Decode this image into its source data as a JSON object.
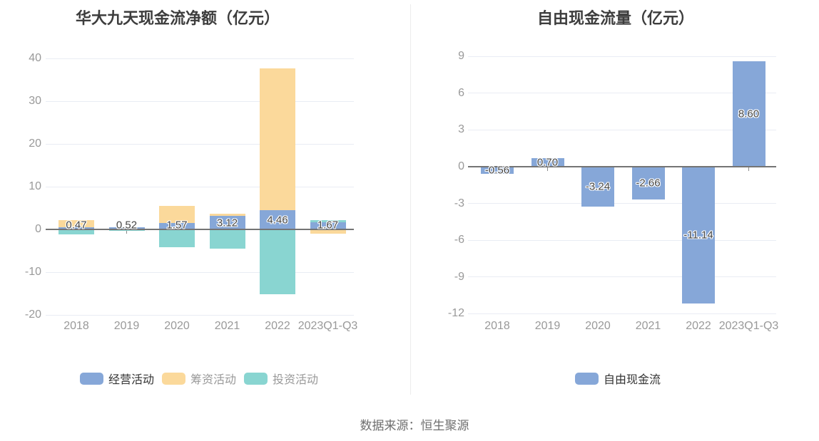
{
  "page": {
    "source_note": "数据来源：恒生聚源"
  },
  "colors": {
    "operating_blue": "#86A7D8",
    "financing_peach": "#FBD99B",
    "investing_teal": "#89D5D1",
    "free_cashflow_blue": "#86A7D8"
  },
  "chart_data": [
    {
      "id": "net-cashflow",
      "type": "bar",
      "title": "华大九天现金流净额（亿元）",
      "categories": [
        "2018",
        "2019",
        "2020",
        "2021",
        "2022",
        "2023Q1-Q3"
      ],
      "bar_mode": "overlap",
      "grid": true,
      "ylim": [
        -20,
        40
      ],
      "yticks": [
        40,
        30,
        20,
        10,
        0,
        -10,
        -20
      ],
      "series": [
        {
          "key": "operating",
          "name": "经营活动",
          "color": "#86A7D8",
          "values": [
            0.47,
            0.52,
            1.57,
            3.12,
            4.46,
            1.67
          ],
          "labels": [
            "0.47",
            "0.52",
            "1.57",
            "3.12",
            "4.46",
            "1.67"
          ]
        },
        {
          "key": "financing",
          "name": "筹资活动",
          "color": "#FBD99B",
          "values": [
            2.2,
            0.06,
            5.5,
            3.6,
            37.6,
            -1.0
          ]
        },
        {
          "key": "investing",
          "name": "投资活动",
          "color": "#89D5D1",
          "values": [
            -1.1,
            -0.3,
            -4.2,
            -4.5,
            -15.2,
            2.2
          ]
        }
      ],
      "legend": {
        "position": "bottom",
        "items": [
          {
            "key": "operating",
            "label": "经营活动",
            "swatch": "#86A7D8",
            "text_color": "#333333"
          },
          {
            "key": "financing",
            "label": "筹资活动",
            "swatch": "#FBD99B",
            "text_color": "#999999"
          },
          {
            "key": "investing",
            "label": "投资活动",
            "swatch": "#89D5D1",
            "text_color": "#999999"
          }
        ]
      }
    },
    {
      "id": "free-cashflow",
      "type": "bar",
      "title": "自由现金流量（亿元）",
      "categories": [
        "2018",
        "2019",
        "2020",
        "2021",
        "2022",
        "2023Q1-Q3"
      ],
      "bar_mode": "single",
      "grid": true,
      "ylim": [
        -12,
        9
      ],
      "yticks": [
        9,
        6,
        3,
        0,
        -3,
        -6,
        -9,
        -12
      ],
      "series": [
        {
          "key": "free-cash-flow",
          "name": "自由现金流",
          "color": "#86A7D8",
          "values": [
            -0.56,
            0.7,
            -3.24,
            -2.66,
            -11.14,
            8.6
          ],
          "labels": [
            "-0.56",
            "0.70",
            "-3.24",
            "-2.66",
            "-11.14",
            "8.60"
          ]
        }
      ],
      "legend": {
        "position": "bottom",
        "items": [
          {
            "key": "free-cash-flow",
            "label": "自由现金流",
            "swatch": "#86A7D8",
            "text_color": "#333333"
          }
        ]
      }
    }
  ]
}
